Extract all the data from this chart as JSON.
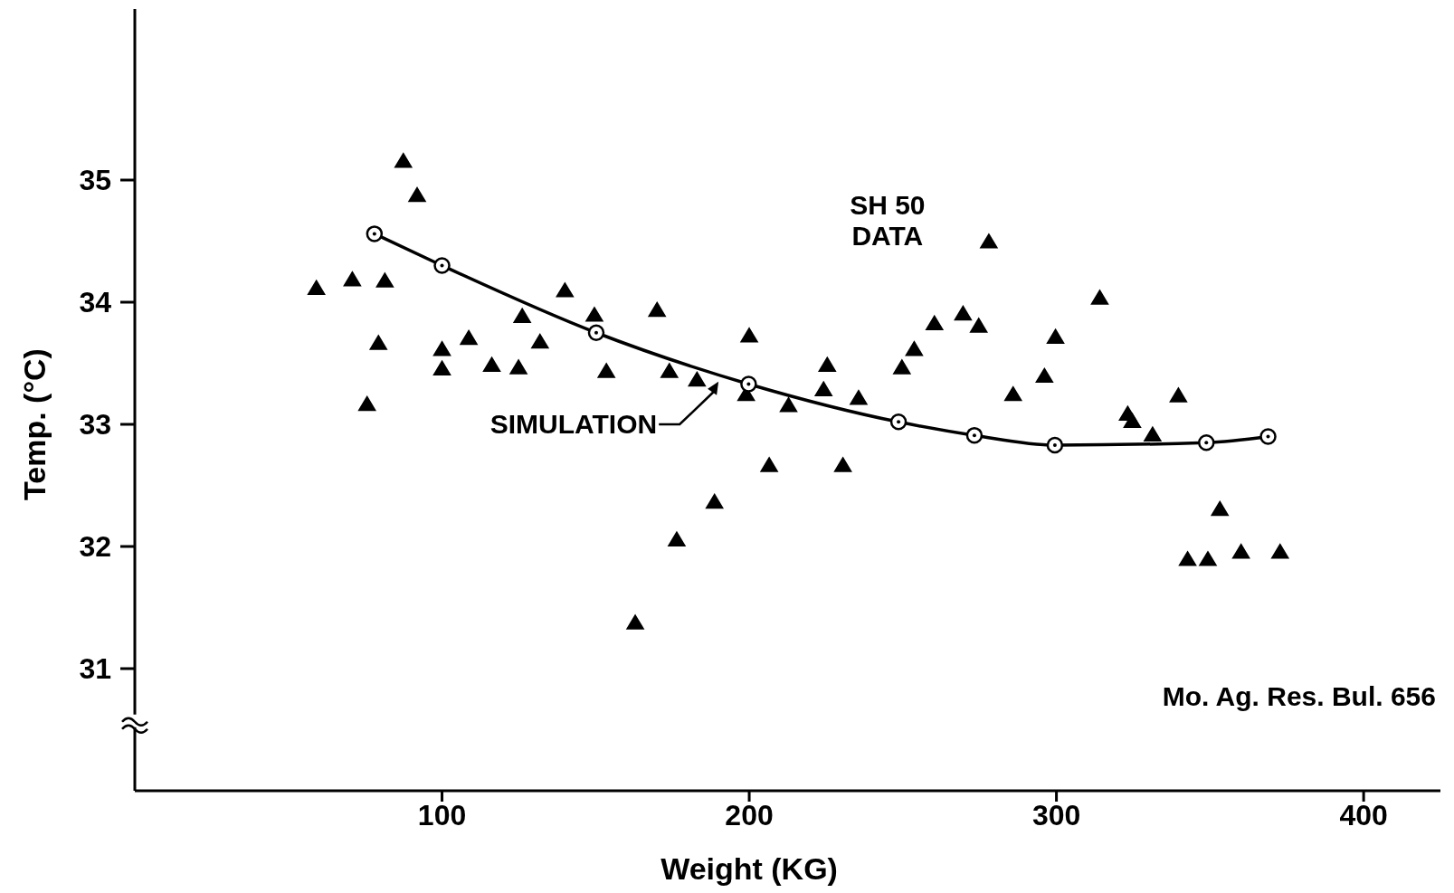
{
  "chart_data": {
    "type": "scatter",
    "xlabel": "Weight (KG)",
    "ylabel": "Temp. (°C)",
    "xlim": [
      0,
      425
    ],
    "ylim": [
      30,
      36.4
    ],
    "xticks": [
      100,
      200,
      300,
      400
    ],
    "yticks": [
      31,
      32,
      33,
      34,
      35
    ],
    "grid": false,
    "annotations": [
      "Mo. Ag. Res. Bul. 656"
    ],
    "series": [
      {
        "name": "SH 50 DATA",
        "marker": "triangle",
        "color": "#000000",
        "x": [
          59.1,
          70.8,
          75.6,
          79.3,
          81.4,
          87.4,
          91.9,
          100,
          100,
          108.7,
          116.2,
          124.9,
          126.1,
          131.9,
          140,
          149.6,
          153.5,
          170,
          174,
          176.4,
          183,
          188.7,
          162.9,
          200,
          199,
          206.5,
          212.8,
          225.4,
          224.2,
          230.5,
          235.6,
          249.7,
          253.7,
          260.3,
          269.6,
          274.7,
          278,
          285.9,
          296.1,
          299.7,
          314.1,
          323.2,
          324.7,
          331.3,
          339.7,
          342.7,
          349.3,
          353.2,
          360.1,
          372.8
        ],
        "values": [
          34.11,
          34.18,
          33.16,
          33.66,
          34.17,
          35.15,
          34.87,
          33.61,
          33.45,
          33.7,
          33.48,
          33.46,
          33.88,
          33.67,
          34.09,
          33.89,
          33.43,
          33.93,
          33.43,
          32.05,
          33.36,
          32.36,
          31.37,
          33.72,
          33.24,
          32.66,
          33.15,
          33.48,
          33.28,
          32.66,
          33.21,
          33.46,
          33.61,
          33.82,
          33.9,
          33.8,
          34.49,
          33.24,
          33.39,
          33.71,
          34.03,
          33.08,
          33.02,
          32.91,
          33.23,
          31.89,
          31.89,
          32.3,
          31.95,
          31.95
        ]
      },
      {
        "name": "SIMULATION",
        "type": "line",
        "marker": "circle",
        "line_style": "solid",
        "color": "#000000",
        "x": [
          78,
          100,
          150.2,
          199.8,
          248.6,
          273.3,
          299.5,
          348.8,
          368.9
        ],
        "values": [
          34.56,
          34.3,
          33.75,
          33.33,
          33.02,
          32.91,
          32.83,
          32.85,
          32.9
        ]
      }
    ]
  }
}
